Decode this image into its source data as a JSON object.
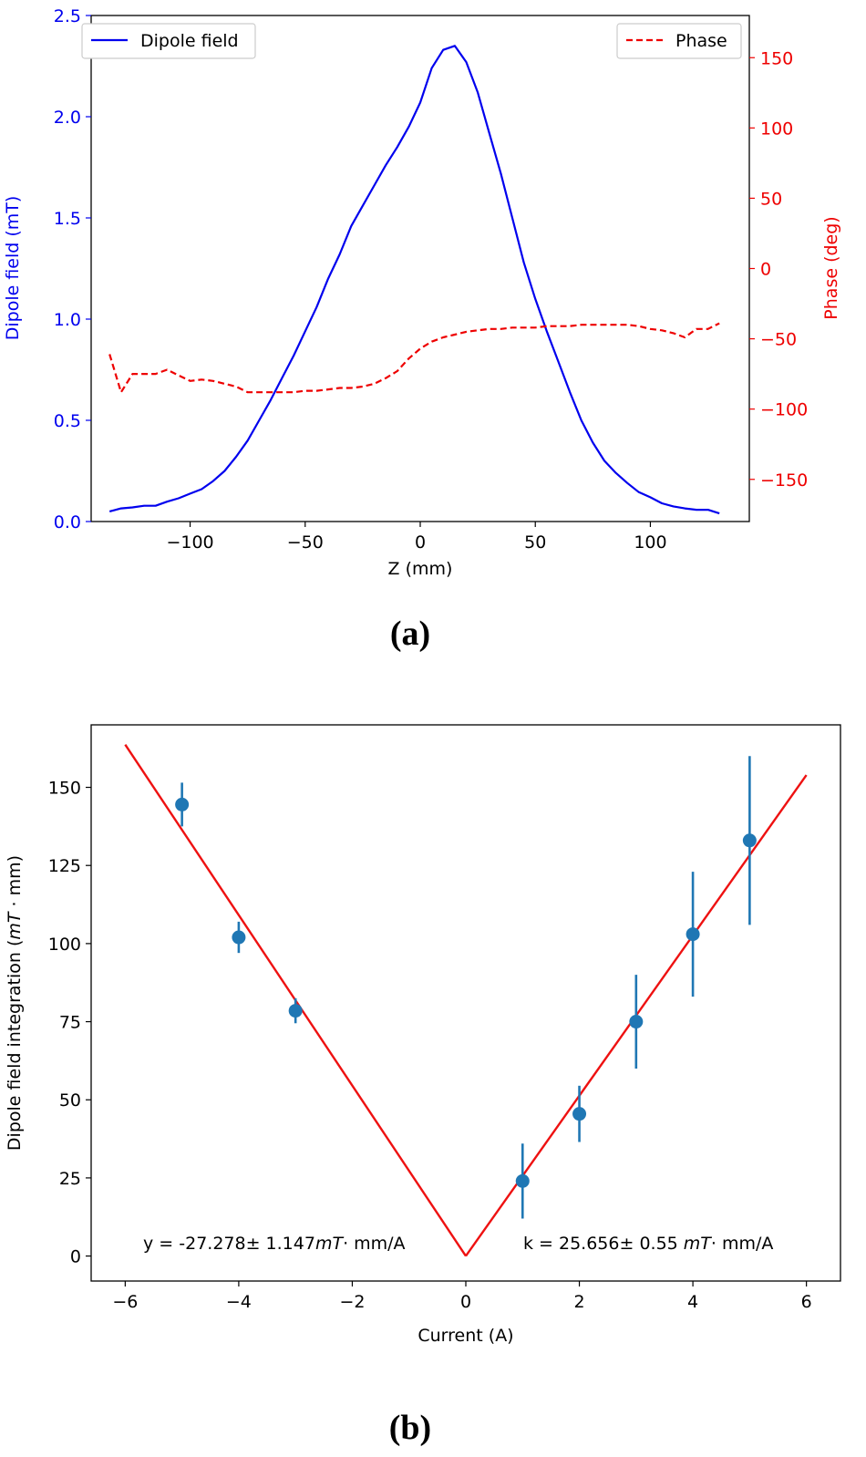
{
  "colors": {
    "field": "#0000ee",
    "phase": "#ee0000",
    "points": "#1f77b4",
    "fit": "#ee1111"
  },
  "panels": {
    "a_label": "(a)",
    "b_label": "(b)"
  },
  "chart_data": [
    {
      "type": "line",
      "xlabel": "Z (mm)",
      "ylabel": "Dipole field (mT)",
      "y2label": "Phase (deg)",
      "xlim": [
        -143,
        143
      ],
      "ylim": [
        0,
        2.5
      ],
      "y2lim": [
        -180,
        180
      ],
      "xticks": [
        -100,
        -50,
        0,
        50,
        100
      ],
      "yticks": [
        0.0,
        0.5,
        1.0,
        1.5,
        2.0,
        2.5
      ],
      "y2ticks": [
        -150,
        -100,
        -50,
        0,
        50,
        100,
        150
      ],
      "legend": {
        "left": "Dipole field",
        "right": "Phase"
      },
      "series": [
        {
          "name": "Dipole field",
          "axis": "left",
          "style": "solid",
          "x": [
            -135,
            -130,
            -125,
            -120,
            -115,
            -110,
            -105,
            -100,
            -95,
            -90,
            -85,
            -80,
            -75,
            -70,
            -65,
            -60,
            -55,
            -50,
            -45,
            -40,
            -35,
            -30,
            -25,
            -20,
            -15,
            -10,
            -5,
            0,
            5,
            10,
            15,
            20,
            25,
            30,
            35,
            40,
            45,
            50,
            55,
            60,
            65,
            70,
            75,
            80,
            85,
            90,
            95,
            100,
            105,
            110,
            115,
            120,
            125,
            130
          ],
          "values": [
            0.05,
            0.065,
            0.07,
            0.078,
            0.078,
            0.098,
            0.115,
            0.138,
            0.16,
            0.2,
            0.25,
            0.32,
            0.4,
            0.5,
            0.6,
            0.71,
            0.82,
            0.94,
            1.06,
            1.2,
            1.32,
            1.46,
            1.56,
            1.66,
            1.76,
            1.85,
            1.95,
            2.07,
            2.24,
            2.33,
            2.35,
            2.27,
            2.12,
            1.92,
            1.72,
            1.5,
            1.28,
            1.1,
            0.94,
            0.79,
            0.64,
            0.5,
            0.39,
            0.3,
            0.24,
            0.19,
            0.145,
            0.12,
            0.09,
            0.075,
            0.065,
            0.058,
            0.058,
            0.04
          ]
        },
        {
          "name": "Phase",
          "axis": "right",
          "style": "dashed",
          "x": [
            -135,
            -130,
            -125,
            -120,
            -115,
            -110,
            -105,
            -100,
            -95,
            -90,
            -85,
            -80,
            -75,
            -70,
            -65,
            -60,
            -55,
            -50,
            -45,
            -40,
            -35,
            -30,
            -25,
            -20,
            -15,
            -10,
            -5,
            0,
            5,
            10,
            15,
            20,
            25,
            30,
            35,
            40,
            45,
            50,
            55,
            60,
            65,
            70,
            75,
            80,
            85,
            90,
            95,
            100,
            105,
            110,
            115,
            120,
            125,
            130
          ],
          "values": [
            -61,
            -88,
            -75,
            -75,
            -75,
            -72,
            -76,
            -80,
            -79,
            -80,
            -82,
            -84,
            -88,
            -88,
            -88,
            -88,
            -88,
            -87,
            -87,
            -86,
            -85,
            -85,
            -84,
            -82,
            -78,
            -73,
            -64,
            -57,
            -52,
            -49,
            -47,
            -45,
            -44,
            -43,
            -43,
            -42,
            -42,
            -42,
            -41,
            -41,
            -41,
            -40,
            -40,
            -40,
            -40,
            -40,
            -41,
            -43,
            -44,
            -46,
            -49,
            -43,
            -43,
            -39
          ]
        }
      ]
    },
    {
      "type": "scatter",
      "xlabel": "Current (A)",
      "ylabel": "Dipole field integration (mT · mm)",
      "xlim": [
        -6.6,
        6.6
      ],
      "ylim": [
        -8,
        170
      ],
      "xticks": [
        -6,
        -4,
        -2,
        0,
        2,
        4,
        6
      ],
      "yticks": [
        0,
        25,
        50,
        75,
        100,
        125,
        150
      ],
      "points": {
        "x": [
          -5,
          -4,
          -3,
          1,
          2,
          3,
          4,
          5
        ],
        "y": [
          144.5,
          102,
          78.5,
          24,
          45.5,
          75,
          103,
          133
        ],
        "err": [
          7,
          5,
          4,
          12,
          9,
          15,
          20,
          27
        ]
      },
      "fit": [
        {
          "slope": -27.278,
          "x": [
            -6,
            0
          ]
        },
        {
          "slope": 25.656,
          "x": [
            0,
            6
          ]
        }
      ],
      "annotations": {
        "left_prefix": "y = -27.278± 1.147",
        "left_unit": "mT",
        "left_suffix": "· mm/A",
        "right_prefix": "k = 25.656± 0.55 ",
        "right_unit": "mT",
        "right_suffix": "· mm/A"
      }
    }
  ]
}
